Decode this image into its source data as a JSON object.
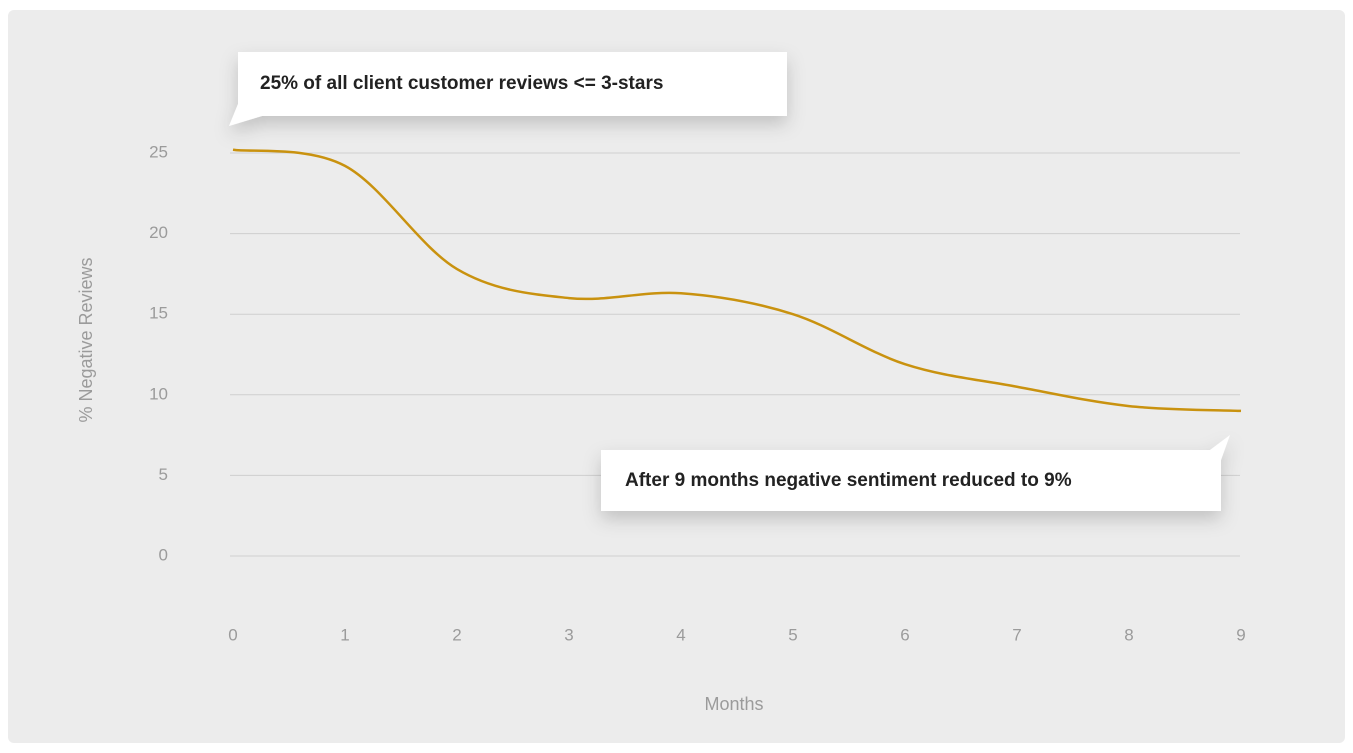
{
  "chart_data": {
    "type": "line",
    "xlabel": "Months",
    "ylabel": "% Negative Reviews",
    "x": [
      0,
      1,
      2,
      3,
      4,
      5,
      6,
      7,
      8,
      9
    ],
    "values": [
      25.2,
      24.2,
      17.8,
      16.0,
      16.3,
      15.0,
      11.9,
      10.5,
      9.3,
      9.0
    ],
    "color": "#c9920f",
    "xlim": [
      0,
      9
    ],
    "xticks": [
      0,
      1,
      2,
      3,
      4,
      5,
      6,
      7,
      8,
      9
    ],
    "ylim": [
      0,
      25
    ],
    "yticks": [
      0,
      5,
      10,
      15,
      20,
      25
    ],
    "grid": true,
    "annotations": [
      "25% of all client customer reviews <= 3-stars",
      "After 9 months negative sentiment reduced to 9%"
    ]
  }
}
